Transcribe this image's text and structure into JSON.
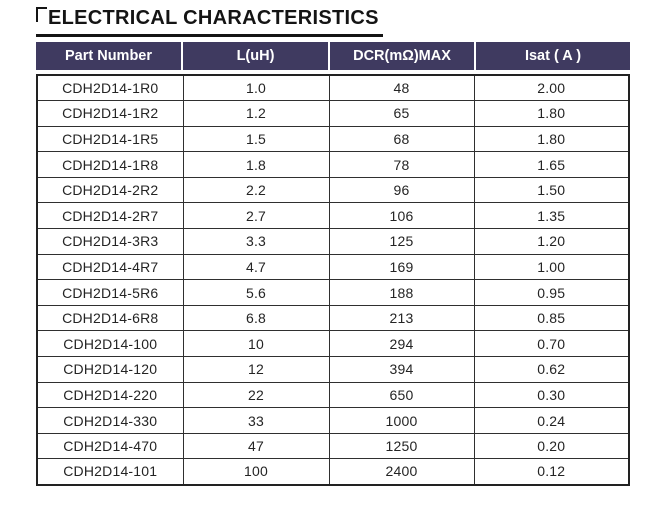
{
  "title": "ELECTRICAL CHARACTERISTICS",
  "colors": {
    "header_bg": "#3f3a60",
    "header_text": "#ffffff",
    "border": "#2f2f2f",
    "border_dark": "#222222",
    "title": "#141414"
  },
  "icons": {
    "title_bracket": "corner-bracket"
  },
  "table": {
    "columns": [
      "Part Number",
      "L(uH)",
      "DCR(mΩ)MAX",
      "Isat ( A )"
    ],
    "rows": [
      [
        "CDH2D14-1R0",
        "1.0",
        "48",
        "2.00"
      ],
      [
        "CDH2D14-1R2",
        "1.2",
        "65",
        "1.80"
      ],
      [
        "CDH2D14-1R5",
        "1.5",
        "68",
        "1.80"
      ],
      [
        "CDH2D14-1R8",
        "1.8",
        "78",
        "1.65"
      ],
      [
        "CDH2D14-2R2",
        "2.2",
        "96",
        "1.50"
      ],
      [
        "CDH2D14-2R7",
        "2.7",
        "106",
        "1.35"
      ],
      [
        "CDH2D14-3R3",
        "3.3",
        "125",
        "1.20"
      ],
      [
        "CDH2D14-4R7",
        "4.7",
        "169",
        "1.00"
      ],
      [
        "CDH2D14-5R6",
        "5.6",
        "188",
        "0.95"
      ],
      [
        "CDH2D14-6R8",
        "6.8",
        "213",
        "0.85"
      ],
      [
        "CDH2D14-100",
        "10",
        "294",
        "0.70"
      ],
      [
        "CDH2D14-120",
        "12",
        "394",
        "0.62"
      ],
      [
        "CDH2D14-220",
        "22",
        "650",
        "0.30"
      ],
      [
        "CDH2D14-330",
        "33",
        "1000",
        "0.24"
      ],
      [
        "CDH2D14-470",
        "47",
        "1250",
        "0.20"
      ],
      [
        "CDH2D14-101",
        "100",
        "2400",
        "0.12"
      ]
    ]
  }
}
